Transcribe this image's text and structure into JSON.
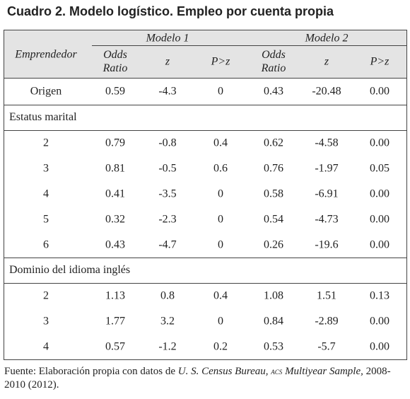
{
  "title": "Cuadro 2. Modelo logístico. Empleo por cuenta propia",
  "table": {
    "groups": [
      "Modelo 1",
      "Modelo 2"
    ],
    "row_header": "Emprendedor",
    "columns": [
      "Odds Ratio",
      "z",
      "P>z",
      "Odds Ratio",
      "z",
      "P>z"
    ],
    "sections": [
      {
        "rows": [
          {
            "label": "Origen",
            "values": [
              "0.59",
              "-4.3",
              "0",
              "0.43",
              "-20.48",
              "0.00"
            ]
          }
        ]
      },
      {
        "title": "Estatus marital",
        "rows": [
          {
            "label": "2",
            "values": [
              "0.79",
              "-0.8",
              "0.4",
              "0.62",
              "-4.58",
              "0.00"
            ]
          },
          {
            "label": "3",
            "values": [
              "0.81",
              "-0.5",
              "0.6",
              "0.76",
              "-1.97",
              "0.05"
            ]
          },
          {
            "label": "4",
            "values": [
              "0.41",
              "-3.5",
              "0",
              "0.58",
              "-6.91",
              "0.00"
            ]
          },
          {
            "label": "5",
            "values": [
              "0.32",
              "-2.3",
              "0",
              "0.54",
              "-4.73",
              "0.00"
            ]
          },
          {
            "label": "6",
            "values": [
              "0.43",
              "-4.7",
              "0",
              "0.26",
              "-19.6",
              "0.00"
            ]
          }
        ]
      },
      {
        "title": "Dominio del idioma inglés",
        "rows": [
          {
            "label": "2",
            "values": [
              "1.13",
              "0.8",
              "0.4",
              "1.08",
              "1.51",
              "0.13"
            ]
          },
          {
            "label": "3",
            "values": [
              "1.77",
              "3.2",
              "0",
              "0.84",
              "-2.89",
              "0.00"
            ]
          },
          {
            "label": "4",
            "values": [
              "0.57",
              "-1.2",
              "0.2",
              "0.53",
              "-5.7",
              "0.00"
            ]
          }
        ]
      }
    ]
  },
  "footer": {
    "prefix": "Fuente: Elaboración propia con datos de ",
    "source": "U. S. Census Bureau,",
    "acs": "acs",
    "sample": "Multiyear Sample,",
    "suffix": " 2008-2010 (2012)."
  }
}
